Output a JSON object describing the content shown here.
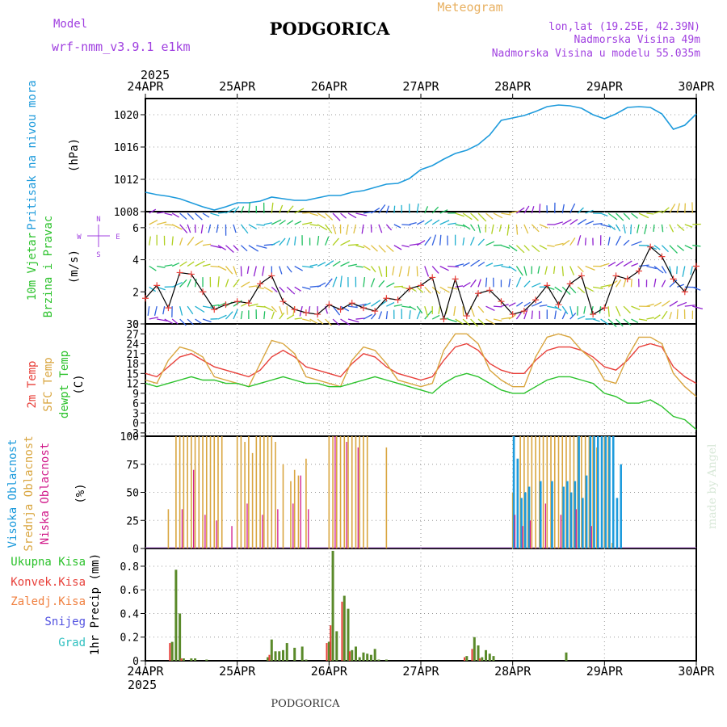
{
  "header": {
    "model_label": "Model",
    "model_name": "wrf-nmm_v3.9.1 e1km",
    "title": "PODGORICA",
    "subtitle": "Meteogram",
    "lonlat": "lon,lat (19.25E, 42.39N)",
    "elevation": "Nadmorska Visina 49m",
    "model_elevation": "Nadmorska Visina u modelu 55.035m",
    "footer_title": "PODGORICA",
    "watermark": "made by Angel"
  },
  "time_axis": {
    "year": "2025",
    "labels": [
      "24APR",
      "25APR",
      "26APR",
      "27APR",
      "28APR",
      "29APR",
      "30APR"
    ]
  },
  "panel_labels": {
    "pressure": {
      "name": "Pritisak na nivou mora",
      "unit": "(hPa)"
    },
    "wind": {
      "name1": "10m Vjetar",
      "name2": "Brzina i Pravac",
      "unit": "(m/s)",
      "compass_n": "N",
      "compass_s": "S",
      "compass_e": "E",
      "compass_w": "W"
    },
    "temp": {
      "t2m": "2m Temp",
      "sfc": "SFC Temp",
      "dew": "dewpt Temp",
      "unit": "(C)"
    },
    "cloud": {
      "high": "Visoka Oblacnost",
      "mid": "Srednja Oblacnost",
      "low": "Niska Oblacnost",
      "unit": "(%)"
    },
    "precip": {
      "total": "Ukupna Kisa",
      "conv": "Konvek.Kisa",
      "frozen": "Zaledj.Kisa",
      "snow": "Snijeg",
      "hail": "Grad",
      "unit": "1hr Precip (mm)"
    }
  },
  "colors": {
    "pressure": "#1e9bdc",
    "t2m": "#e8403a",
    "sfc": "#d9a640",
    "dew": "#2cc22c",
    "cloud_high": "#1e9bdc",
    "cloud_mid": "#d9a640",
    "cloud_low": "#d11a8a",
    "precip_total": "#5a8a2a",
    "precip_conv": "#e8403a",
    "model": "#a040e0",
    "title_orange": "#e8b060"
  },
  "chart_data": [
    {
      "type": "line",
      "title": "Pritisak na nivou mora",
      "ylabel": "(hPa)",
      "ylim": [
        1008,
        1022
      ],
      "yticks": [
        1008,
        1012,
        1016,
        1020
      ],
      "x_hours": [
        0,
        3,
        6,
        9,
        12,
        15,
        18,
        21,
        24,
        27,
        30,
        33,
        36,
        39,
        42,
        45,
        48,
        51,
        54,
        57,
        60,
        63,
        66,
        69,
        72,
        75,
        78,
        81,
        84,
        87,
        90,
        93,
        96,
        99,
        102,
        105,
        108,
        111,
        114,
        117,
        120,
        123,
        126,
        129,
        132,
        135,
        138,
        141,
        144
      ],
      "series": [
        {
          "name": "Pritisak na nivou mora",
          "values": [
            1010.4,
            1010.1,
            1009.9,
            1009.6,
            1009.1,
            1008.6,
            1008.2,
            1008.6,
            1009.1,
            1009.1,
            1009.3,
            1009.8,
            1009.6,
            1009.4,
            1009.4,
            1009.7,
            1010.0,
            1010.0,
            1010.4,
            1010.6,
            1011.0,
            1011.4,
            1011.5,
            1012.1,
            1013.2,
            1013.7,
            1014.5,
            1015.2,
            1015.6,
            1016.3,
            1017.5,
            1019.3,
            1019.6,
            1019.9,
            1020.4,
            1021.0,
            1021.2,
            1021.1,
            1020.8,
            1020.0,
            1019.5,
            1020.1,
            1020.9,
            1021.0,
            1020.9,
            1020.1,
            1018.2,
            1018.7,
            1020.1
          ]
        }
      ]
    },
    {
      "type": "line",
      "title": "10m Vjetar Brzina i Pravac",
      "ylabel": "(m/s)",
      "ylim": [
        0,
        7
      ],
      "yticks": [
        0,
        2,
        4,
        6
      ],
      "x_hours": [
        0,
        3,
        6,
        9,
        12,
        15,
        18,
        21,
        24,
        27,
        30,
        33,
        36,
        39,
        42,
        45,
        48,
        51,
        54,
        57,
        60,
        63,
        66,
        69,
        72,
        75,
        78,
        81,
        84,
        87,
        90,
        93,
        96,
        99,
        102,
        105,
        108,
        111,
        114,
        117,
        120,
        123,
        126,
        129,
        132,
        135,
        138,
        141,
        144
      ],
      "series": [
        {
          "name": "10m wind speed",
          "values": [
            1.6,
            2.4,
            1.0,
            3.2,
            3.1,
            2.0,
            0.9,
            1.2,
            1.4,
            1.3,
            2.5,
            3.0,
            1.4,
            0.9,
            0.7,
            0.6,
            1.2,
            0.9,
            1.3,
            1.0,
            0.8,
            1.6,
            1.5,
            2.2,
            2.4,
            2.9,
            0.3,
            2.8,
            0.5,
            1.9,
            2.1,
            1.4,
            0.6,
            0.8,
            1.5,
            2.4,
            1.2,
            2.5,
            3.0,
            0.6,
            1.0,
            3.0,
            2.8,
            3.3,
            4.8,
            4.2,
            2.8,
            2.0,
            3.6
          ]
        }
      ]
    },
    {
      "type": "line",
      "title": "2m Temp / SFC Temp / dewpt Temp",
      "ylabel": "(C)",
      "ylim": [
        -4,
        30
      ],
      "yticks": [
        -3,
        0,
        3,
        6,
        9,
        12,
        15,
        18,
        21,
        24,
        27,
        30
      ],
      "x_hours": [
        0,
        3,
        6,
        9,
        12,
        15,
        18,
        21,
        24,
        27,
        30,
        33,
        36,
        39,
        42,
        45,
        48,
        51,
        54,
        57,
        60,
        63,
        66,
        69,
        72,
        75,
        78,
        81,
        84,
        87,
        90,
        93,
        96,
        99,
        102,
        105,
        108,
        111,
        114,
        117,
        120,
        123,
        126,
        129,
        132,
        135,
        138,
        141,
        144
      ],
      "series": [
        {
          "name": "2m Temp",
          "values": [
            15,
            14,
            17,
            20,
            21,
            19,
            17,
            16,
            15,
            14,
            16,
            20,
            22,
            20,
            17,
            16,
            15,
            14,
            18,
            21,
            20,
            17,
            15,
            14,
            13,
            14,
            19,
            23,
            24,
            22,
            18,
            16,
            15,
            15,
            19,
            22,
            23,
            23,
            22,
            20,
            17,
            16,
            19,
            23,
            24,
            23,
            17,
            14,
            12
          ]
        },
        {
          "name": "SFC Temp",
          "values": [
            13,
            12,
            19,
            23,
            22,
            20,
            14,
            13,
            12,
            11,
            18,
            25,
            24,
            21,
            14,
            13,
            12,
            11,
            19,
            23,
            22,
            18,
            13,
            12,
            11,
            12,
            22,
            27,
            27,
            24,
            16,
            13,
            11,
            11,
            20,
            26,
            27,
            26,
            22,
            19,
            13,
            12,
            20,
            26,
            26,
            24,
            15,
            11,
            8
          ]
        },
        {
          "name": "dewpt Temp",
          "values": [
            12,
            11,
            12,
            13,
            14,
            13,
            13,
            12,
            12,
            11,
            12,
            13,
            14,
            13,
            12,
            12,
            11,
            11,
            12,
            13,
            14,
            13,
            12,
            11,
            10,
            9,
            12,
            14,
            15,
            14,
            12,
            10,
            9,
            9,
            11,
            13,
            14,
            14,
            13,
            12,
            9,
            8,
            6,
            6,
            7,
            5,
            2,
            1,
            -2
          ]
        }
      ]
    },
    {
      "type": "bar",
      "title": "Visoka / Srednja / Niska Oblacnost",
      "ylabel": "(%)",
      "ylim": [
        0,
        100
      ],
      "yticks": [
        0,
        25,
        50,
        75,
        100
      ],
      "series": [
        {
          "name": "Srednja Oblacnost",
          "x_hours": [
            6,
            8,
            9,
            10,
            11,
            12,
            13,
            14,
            15,
            16,
            17,
            18,
            19,
            20,
            24,
            25,
            26,
            27,
            28,
            29,
            30,
            31,
            32,
            33,
            34,
            36,
            38,
            39,
            40,
            42,
            48,
            49,
            50,
            51,
            52,
            53,
            54,
            55,
            56,
            57,
            58,
            63,
            96,
            98,
            99,
            100,
            101,
            102,
            103,
            104,
            105,
            106,
            107,
            108,
            109,
            110,
            111,
            112,
            113,
            114,
            115,
            116,
            117,
            118,
            120,
            121,
            122
          ],
          "values": [
            35,
            100,
            100,
            100,
            100,
            100,
            100,
            100,
            100,
            100,
            100,
            100,
            100,
            100,
            100,
            100,
            95,
            100,
            85,
            100,
            100,
            100,
            100,
            100,
            95,
            75,
            60,
            70,
            65,
            80,
            100,
            100,
            100,
            100,
            100,
            100,
            100,
            100,
            100,
            100,
            100,
            90,
            50,
            100,
            100,
            100,
            100,
            100,
            100,
            100,
            100,
            100,
            100,
            100,
            100,
            100,
            100,
            100,
            100,
            100,
            100,
            100,
            100,
            90,
            100,
            100,
            5
          ]
        },
        {
          "name": "Visoka Oblacnost",
          "x_hours": [
            96,
            97,
            98,
            99,
            100,
            103,
            106,
            109,
            110,
            111,
            112,
            113,
            114,
            115,
            116,
            117,
            118,
            119,
            120,
            121,
            122,
            123,
            124
          ],
          "values": [
            100,
            80,
            45,
            50,
            55,
            60,
            60,
            55,
            60,
            50,
            60,
            100,
            45,
            65,
            100,
            100,
            100,
            100,
            100,
            100,
            100,
            45,
            75
          ]
        },
        {
          "name": "Niska Oblacnost",
          "x_hours": [
            9,
            12,
            15,
            18,
            22,
            26,
            30,
            34,
            38,
            40,
            42,
            49,
            52,
            55,
            96,
            98,
            100,
            104,
            108,
            112,
            116
          ],
          "values": [
            35,
            70,
            30,
            25,
            20,
            40,
            30,
            35,
            40,
            65,
            35,
            100,
            95,
            90,
            30,
            20,
            25,
            40,
            30,
            35,
            20
          ]
        }
      ]
    },
    {
      "type": "bar",
      "title": "1hr Precip",
      "ylabel": "1hr Precip (mm)",
      "ylim": [
        0,
        0.95
      ],
      "yticks": [
        0,
        0.2,
        0.4,
        0.6,
        0.8
      ],
      "series": [
        {
          "name": "Ukupna Kisa",
          "x_hours": [
            7,
            8,
            9,
            10,
            12,
            13,
            16,
            32,
            33,
            34,
            35,
            36,
            37,
            39,
            41,
            42,
            48,
            49,
            50,
            52,
            53,
            54,
            55,
            56,
            57,
            58,
            59,
            60,
            61,
            63,
            84,
            86,
            87,
            88,
            89,
            90,
            91,
            110
          ],
          "values": [
            0.16,
            0.77,
            0.4,
            0.02,
            0.02,
            0.02,
            0.01,
            0.03,
            0.18,
            0.08,
            0.08,
            0.09,
            0.15,
            0.11,
            0.12,
            0.01,
            0.16,
            0.93,
            0.25,
            0.55,
            0.44,
            0.09,
            0.12,
            0.03,
            0.07,
            0.06,
            0.05,
            0.1,
            0.01,
            0.01,
            0.04,
            0.2,
            0.13,
            0.03,
            0.09,
            0.06,
            0.04,
            0.07
          ]
        },
        {
          "name": "Konvek.Kisa",
          "x_hours": [
            7,
            10,
            33,
            48,
            49,
            52,
            54,
            84,
            86,
            88
          ],
          "values": [
            0.15,
            0.02,
            0.05,
            0.15,
            0.3,
            0.5,
            0.08,
            0.03,
            0.1,
            0.02
          ]
        }
      ]
    }
  ]
}
